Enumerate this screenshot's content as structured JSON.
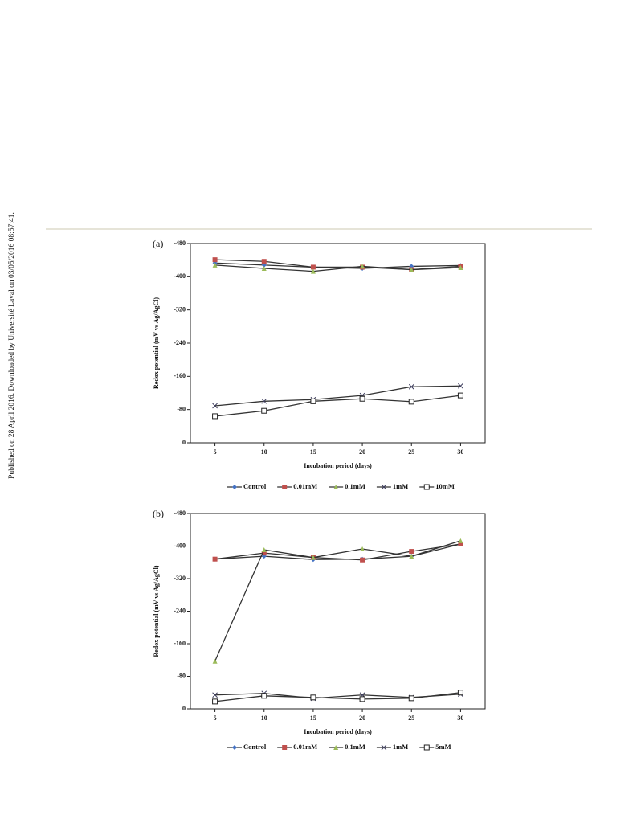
{
  "side_note": "Published on 28 April 2016. Downloaded by Université Laval on 03/05/2016 08:57:41.",
  "chart_data": [
    {
      "type": "line",
      "panel": "(a)",
      "y_label": "Redox potential (mV vs Ag/AgCl)",
      "x_label": "Incubation period (days)",
      "categories": [
        "5",
        "10",
        "15",
        "20",
        "25",
        "30"
      ],
      "ylim": [
        0,
        -480
      ],
      "yticks": [
        0,
        -80,
        -160,
        -240,
        -320,
        -400,
        -480
      ],
      "series": [
        {
          "name": "Control",
          "color": "#4472c4",
          "marker": "diamond",
          "values": [
            -433,
            -428,
            -423,
            -420,
            -425,
            -427
          ]
        },
        {
          "name": "0.01mM",
          "color": "#c0504d",
          "marker": "square",
          "values": [
            -441,
            -437,
            -423,
            -423,
            -417,
            -425
          ]
        },
        {
          "name": "0.1mM",
          "color": "#9bbb59",
          "marker": "triangle",
          "values": [
            -428,
            -420,
            -413,
            -425,
            -417,
            -422
          ]
        },
        {
          "name": "1mM",
          "color": "#404060",
          "marker": "x",
          "values": [
            -89,
            -100,
            -104,
            -114,
            -135,
            -137
          ]
        },
        {
          "name": "10mM",
          "color": "#222222",
          "marker": "open-square",
          "values": [
            -64,
            -77,
            -100,
            -106,
            -99,
            -114
          ]
        }
      ]
    },
    {
      "type": "line",
      "panel": "(b)",
      "y_label": "Redox potential (mV vs Ag/AgCl)",
      "x_label": "Incubation period (days)",
      "categories": [
        "5",
        "10",
        "15",
        "20",
        "25",
        "30"
      ],
      "ylim": [
        0,
        -480
      ],
      "yticks": [
        0,
        -80,
        -160,
        -240,
        -320,
        -400,
        -480
      ],
      "series": [
        {
          "name": "Control",
          "color": "#4472c4",
          "marker": "diamond",
          "values": [
            -368,
            -375,
            -367,
            -368,
            -375,
            -405
          ]
        },
        {
          "name": "0.01mM",
          "color": "#c0504d",
          "marker": "square",
          "values": [
            -368,
            -383,
            -372,
            -366,
            -387,
            -405
          ]
        },
        {
          "name": "0.1mM",
          "color": "#9bbb59",
          "marker": "triangle",
          "values": [
            -117,
            -391,
            -372,
            -393,
            -375,
            -413
          ]
        },
        {
          "name": "1mM",
          "color": "#404060",
          "marker": "x",
          "values": [
            -34,
            -38,
            -26,
            -34,
            -28,
            -36
          ]
        },
        {
          "name": "5mM",
          "color": "#222222",
          "marker": "open-square",
          "values": [
            -18,
            -32,
            -28,
            -24,
            -26,
            -40
          ]
        }
      ]
    }
  ]
}
